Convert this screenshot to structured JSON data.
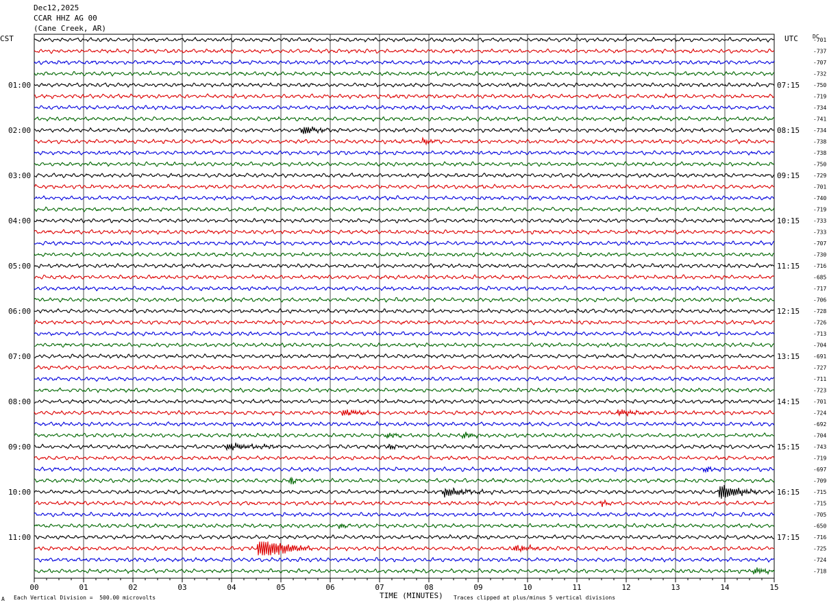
{
  "header": {
    "date": "Dec12,2025",
    "station": "CCAR HHZ AG 00",
    "location": "(Cane Creek, AR)"
  },
  "left_axis_label": "CST",
  "right_axis_label": "UTC",
  "dc_label": "DC",
  "footer": {
    "scale_note": "Each Vertical Division =  500.00 microvolts",
    "clip_note": "Traces clipped at plus/minus 5 vertical divisions",
    "corner_mark": "A"
  },
  "chart_data": {
    "type": "line",
    "xlabel": "TIME (MINUTES)",
    "xlim": [
      0,
      15
    ],
    "x_ticks": [
      "00",
      "01",
      "02",
      "03",
      "04",
      "05",
      "06",
      "07",
      "08",
      "09",
      "10",
      "11",
      "12",
      "13",
      "14",
      "15"
    ],
    "trace_count": 48,
    "trace_colors": [
      "#000000",
      "#dd0000",
      "#0000dd",
      "#006600"
    ],
    "left_hour_labels": [
      "01:00",
      "02:00",
      "03:00",
      "04:00",
      "05:00",
      "06:00",
      "07:00",
      "08:00",
      "09:00",
      "10:00",
      "11:00"
    ],
    "right_hour_labels": [
      "07:15",
      "08:15",
      "09:15",
      "10:15",
      "11:15",
      "12:15",
      "13:15",
      "14:15",
      "15:15",
      "16:15",
      "17:15"
    ],
    "dc_offsets": [
      "-701",
      "-737",
      "-707",
      "-732",
      "-750",
      "-719",
      "-734",
      "-741",
      "-734",
      "-738",
      "-738",
      "-750",
      "-729",
      "-701",
      "-740",
      "-719",
      "-733",
      "-733",
      "-707",
      "-730",
      "-716",
      "-685",
      "-717",
      "-706",
      "-728",
      "-726",
      "-713",
      "-704",
      "-691",
      "-727",
      "-711",
      "-723",
      "-701",
      "-724",
      "-692",
      "-704",
      "-743",
      "-719",
      "-697",
      "-709",
      "-715",
      "-715",
      "-705",
      "-650",
      "-716",
      "-725",
      "-724",
      "-718"
    ],
    "events": [
      {
        "trace": 8,
        "minute": 5.45,
        "amp": 2.0,
        "dur": 0.25
      },
      {
        "trace": 9,
        "minute": 7.9,
        "amp": 1.3,
        "dur": 0.15
      },
      {
        "trace": 33,
        "minute": 6.25,
        "amp": 1.6,
        "dur": 0.3
      },
      {
        "trace": 33,
        "minute": 11.85,
        "amp": 1.4,
        "dur": 0.3
      },
      {
        "trace": 35,
        "minute": 7.15,
        "amp": 1.4,
        "dur": 0.15
      },
      {
        "trace": 35,
        "minute": 8.7,
        "amp": 1.2,
        "dur": 0.2
      },
      {
        "trace": 36,
        "minute": 3.9,
        "amp": 1.3,
        "dur": 0.6
      },
      {
        "trace": 36,
        "minute": 7.2,
        "amp": 1.3,
        "dur": 0.1
      },
      {
        "trace": 38,
        "minute": 13.6,
        "amp": 1.4,
        "dur": 0.15
      },
      {
        "trace": 39,
        "minute": 5.2,
        "amp": 1.6,
        "dur": 0.1
      },
      {
        "trace": 40,
        "minute": 8.3,
        "amp": 1.8,
        "dur": 0.45
      },
      {
        "trace": 40,
        "minute": 13.9,
        "amp": 3.4,
        "dur": 0.35
      },
      {
        "trace": 41,
        "minute": 11.5,
        "amp": 1.3,
        "dur": 0.1
      },
      {
        "trace": 43,
        "minute": 6.2,
        "amp": 1.3,
        "dur": 0.1
      },
      {
        "trace": 45,
        "minute": 4.55,
        "amp": 5.0,
        "dur": 0.5
      },
      {
        "trace": 45,
        "minute": 9.75,
        "amp": 1.5,
        "dur": 0.3
      },
      {
        "trace": 47,
        "minute": 14.6,
        "amp": 1.4,
        "dur": 0.25
      }
    ]
  }
}
